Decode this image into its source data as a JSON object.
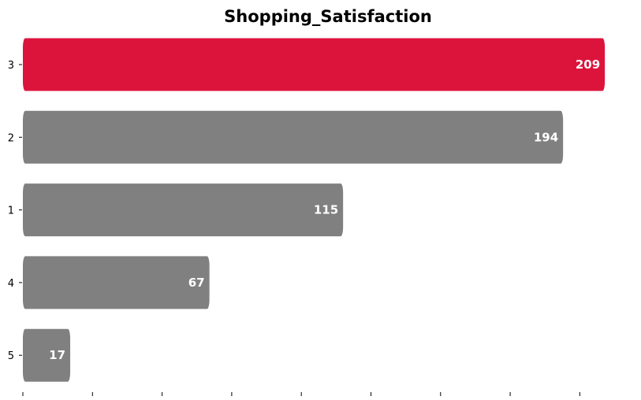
{
  "chart_data": {
    "type": "bar",
    "orientation": "horizontal",
    "title": "Shopping_Satisfaction",
    "categories": [
      "3",
      "2",
      "1",
      "4",
      "5"
    ],
    "values": [
      209,
      194,
      115,
      67,
      17
    ],
    "xlabel": "",
    "ylabel": "",
    "xlim": [
      0,
      220
    ],
    "grid": false,
    "highlight_index": 0,
    "colors": {
      "highlight": "#DC143C",
      "default": "#808080",
      "label": "#FFFFFF"
    }
  }
}
